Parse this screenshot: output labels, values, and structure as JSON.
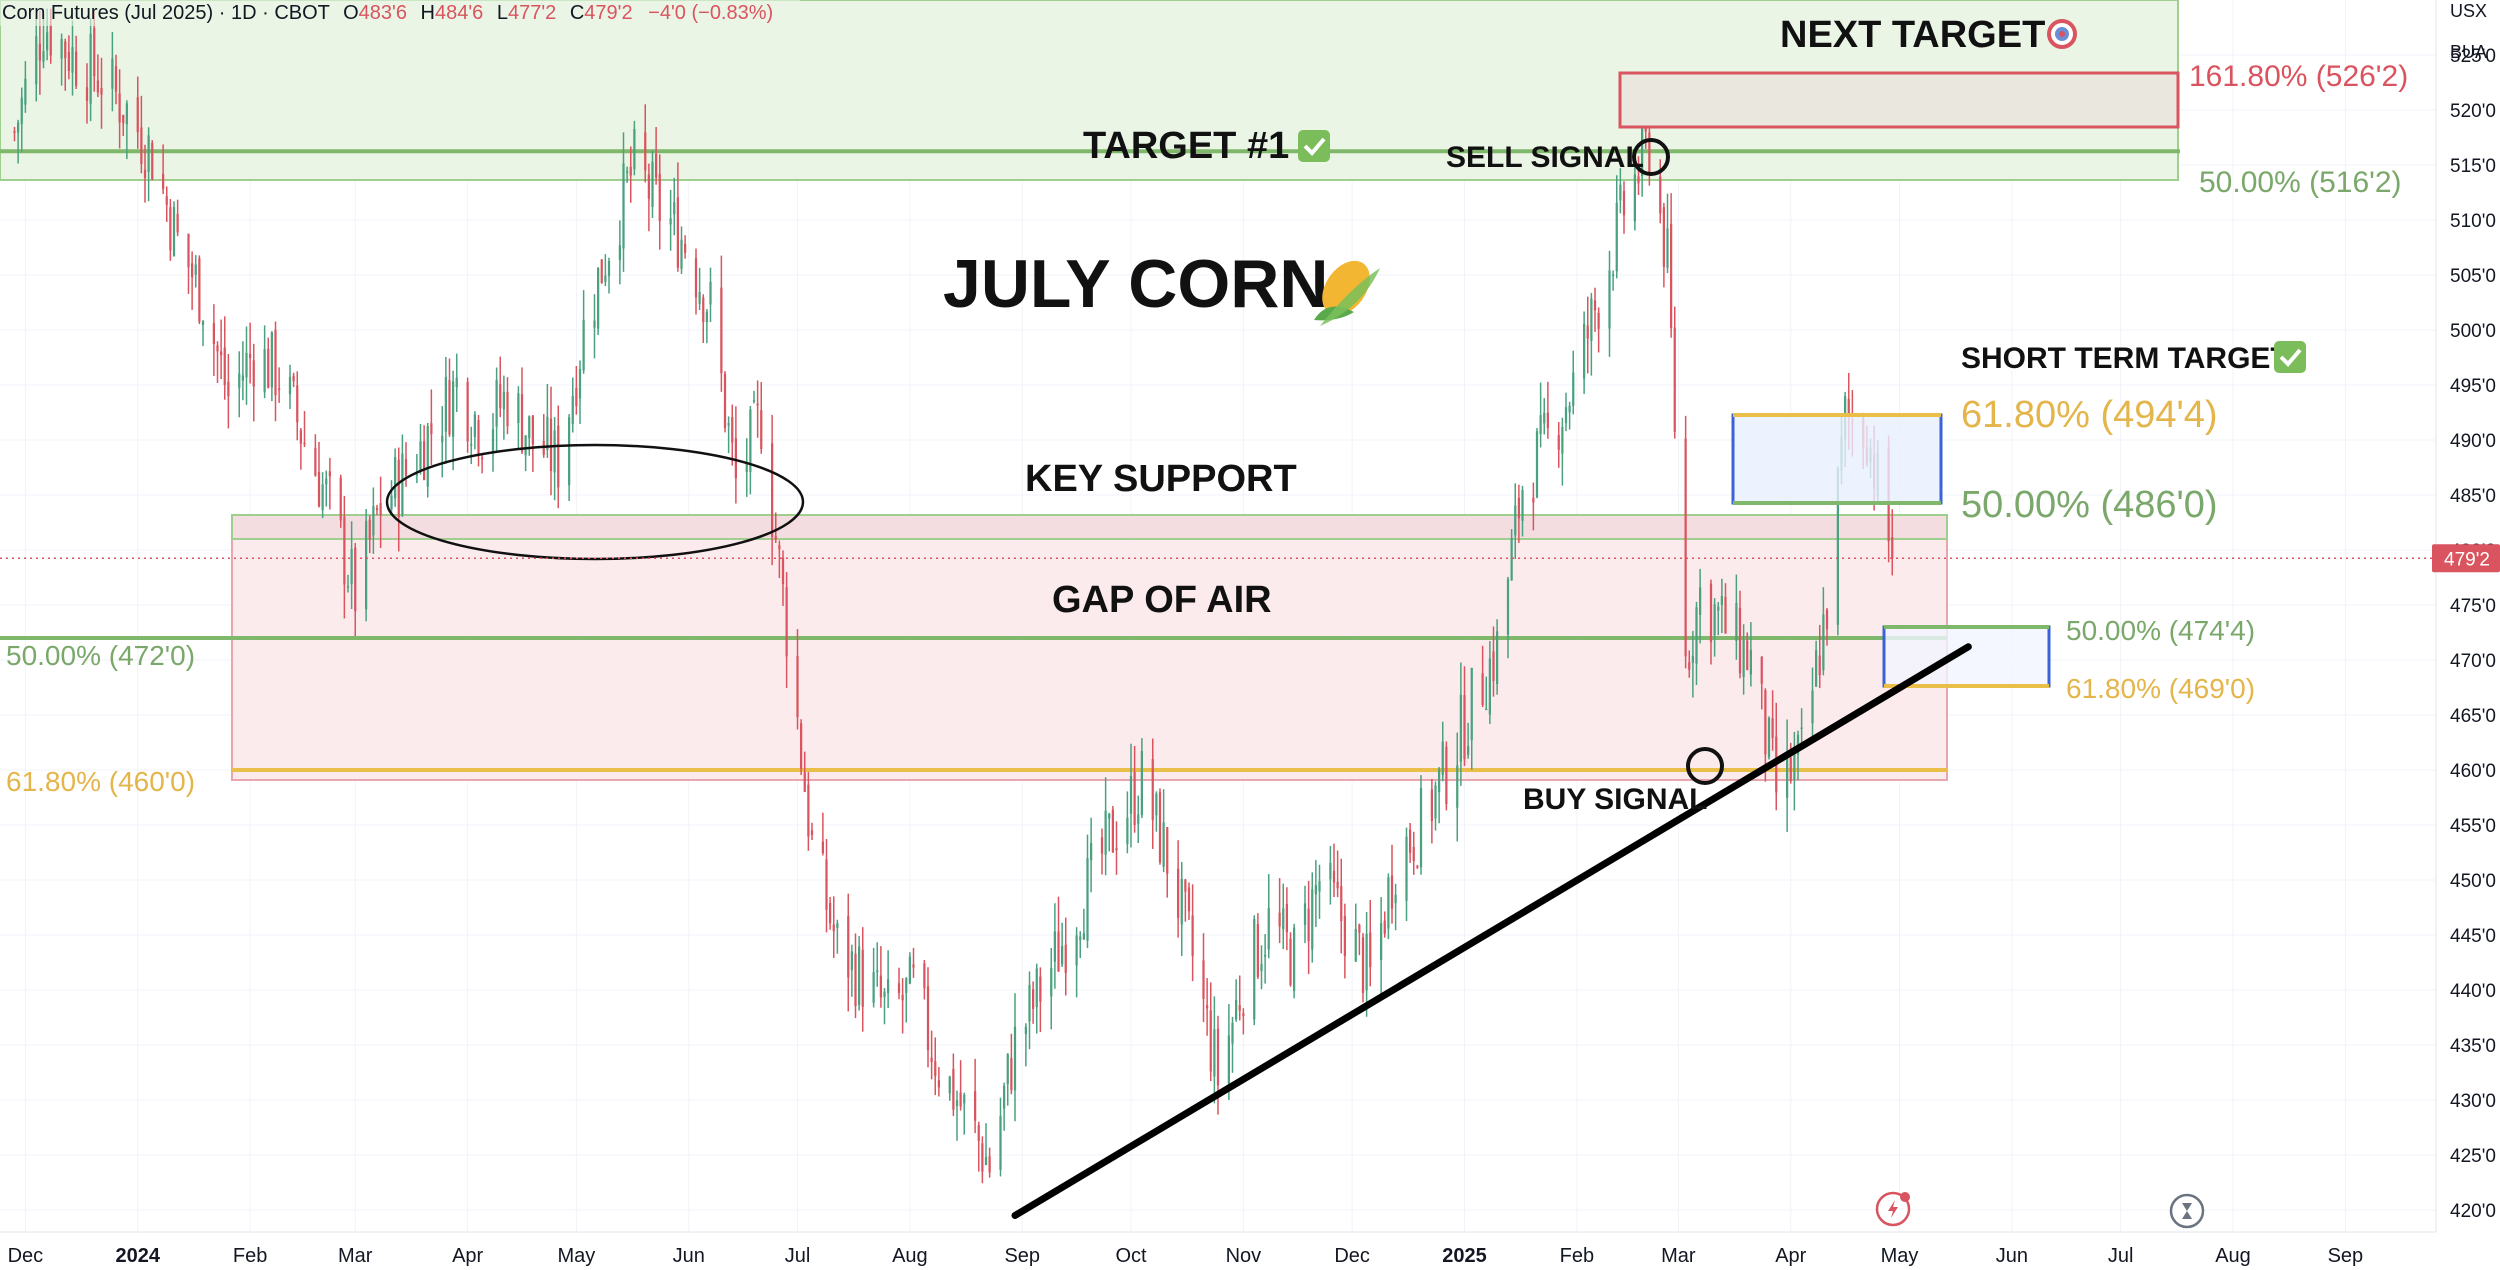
{
  "header": {
    "symbol": "Corn Futures (Jul 2025) · 1D · CBOT",
    "o_label": "O",
    "o_value": "483'6",
    "h_label": "H",
    "h_value": "484'6",
    "l_label": "L",
    "l_value": "477'2",
    "c_label": "C",
    "c_value": "479'2",
    "change": "−4'0 (−0.83%)"
  },
  "axis": {
    "currency": "USX",
    "unit": "BUA",
    "price_ticks": [
      "525'0",
      "520'0",
      "515'0",
      "510'0",
      "505'0",
      "500'0",
      "495'0",
      "490'0",
      "485'0",
      "480'0",
      "475'0",
      "470'0",
      "465'0",
      "460'0",
      "455'0",
      "450'0",
      "445'0",
      "440'0",
      "435'0",
      "430'0",
      "425'0",
      "420'0"
    ],
    "price_tick_values": [
      525,
      520,
      515,
      510,
      505,
      500,
      495,
      490,
      485,
      480,
      475,
      470,
      465,
      460,
      455,
      450,
      445,
      440,
      435,
      430,
      425,
      420
    ],
    "last_price_label": "479'2",
    "last_price": 479.25,
    "time_ticks": [
      "Dec",
      "2024",
      "Feb",
      "Mar",
      "Apr",
      "May",
      "Jun",
      "Jul",
      "Aug",
      "Sep",
      "Oct",
      "Nov",
      "Dec",
      "2025",
      "Feb",
      "Mar",
      "Apr",
      "May",
      "Jun",
      "Jul",
      "Aug",
      "Sep"
    ],
    "time_tick_dates": [
      "2023-12-01",
      "2024-01-01",
      "2024-02-01",
      "2024-03-01",
      "2024-04-01",
      "2024-05-01",
      "2024-06-01",
      "2024-07-01",
      "2024-08-01",
      "2024-09-01",
      "2024-10-01",
      "2024-11-01",
      "2024-12-01",
      "2025-01-01",
      "2025-02-01",
      "2025-03-01",
      "2025-04-01",
      "2025-05-01",
      "2025-06-01",
      "2025-07-01",
      "2025-08-01",
      "2025-09-01"
    ],
    "bold_time_ticks": [
      "2024",
      "2025"
    ]
  },
  "annotations": {
    "title": "JULY CORN",
    "title_icon": "corn-icon",
    "next_target": "NEXT TARGET",
    "next_target_icon": "target-icon",
    "target1": "TARGET #1",
    "target1_icon": "check-icon",
    "sell_signal": "SELL SIGNAL",
    "buy_signal": "BUY SIGNAL",
    "short_term_target": "SHORT TERM TARGET",
    "short_term_icon": "check-icon",
    "key_support": "KEY SUPPORT",
    "gap_of_air": "GAP OF AIR"
  },
  "fib_labels": {
    "f161_top": "161.80% (526'2)",
    "f50_top": "50.00% (516'2)",
    "f618_st": "61.80% (494'4)",
    "f50_st": "50.00% (486'0)",
    "f50_low_right": "50.00% (474'4)",
    "f618_low_right": "61.80% (469'0)",
    "f50_left": "50.00% (472'0)",
    "f618_left": "61.80% (460'0)"
  },
  "colors": {
    "up": "#4aa07f",
    "down": "#d9545e",
    "fib_green": "#7fb86a",
    "fib_yellow": "#e9bf4a",
    "fib_red": "#d9545e",
    "fib_green_text": "#7aa86a",
    "fib_yellow_text": "#e3b54a",
    "fib_red_text": "#d9545e",
    "blue_box": "#3b63d6",
    "last_price_bg": "#d9545e"
  },
  "chart_data": {
    "type": "candlestick",
    "title": "JULY CORN",
    "ylim": [
      418,
      530
    ],
    "xlim": [
      "2023-11-24",
      "2025-09-26"
    ],
    "grid": true,
    "trendline": {
      "from": [
        "2024-08-30",
        419.5
      ],
      "to": [
        "2025-05-20",
        471.2
      ]
    },
    "levels": [
      {
        "label": "161.80% (526'2)",
        "value": 526.25
      },
      {
        "label": "50.00% (516'2)",
        "value": 516.25
      },
      {
        "label": "61.80% (494'4)",
        "value": 494.5
      },
      {
        "label": "50.00% (486'0)",
        "value": 486.0
      },
      {
        "label": "50.00% (474'4)",
        "value": 474.5
      },
      {
        "label": "61.80% (469'0)",
        "value": 469.0
      },
      {
        "label": "50.00% (472'0)",
        "value": 472.0
      },
      {
        "label": "61.80% (460'0)",
        "value": 460.0
      }
    ],
    "close_path": [
      [
        "2023-11-28",
        518
      ],
      [
        "2023-12-06",
        528
      ],
      [
        "2023-12-14",
        525
      ],
      [
        "2023-12-22",
        523
      ],
      [
        "2023-12-29",
        520
      ],
      [
        "2024-01-05",
        516
      ],
      [
        "2024-01-12",
        508
      ],
      [
        "2024-01-19",
        503
      ],
      [
        "2024-01-26",
        494
      ],
      [
        "2024-02-02",
        498
      ],
      [
        "2024-02-09",
        496
      ],
      [
        "2024-02-16",
        490
      ],
      [
        "2024-02-23",
        484
      ],
      [
        "2024-03-01",
        476
      ],
      [
        "2024-03-08",
        484
      ],
      [
        "2024-03-15",
        487
      ],
      [
        "2024-03-22",
        491
      ],
      [
        "2024-03-29",
        495
      ],
      [
        "2024-04-05",
        491
      ],
      [
        "2024-04-12",
        494
      ],
      [
        "2024-04-19",
        490
      ],
      [
        "2024-04-26",
        488
      ],
      [
        "2024-05-03",
        500
      ],
      [
        "2024-05-10",
        508
      ],
      [
        "2024-05-17",
        515
      ],
      [
        "2024-05-24",
        511
      ],
      [
        "2024-05-31",
        508
      ],
      [
        "2024-06-07",
        502
      ],
      [
        "2024-06-14",
        486
      ],
      [
        "2024-06-21",
        492
      ],
      [
        "2024-06-28",
        473
      ],
      [
        "2024-07-05",
        453
      ],
      [
        "2024-07-12",
        444
      ],
      [
        "2024-07-19",
        441
      ],
      [
        "2024-07-26",
        438
      ],
      [
        "2024-08-02",
        440
      ],
      [
        "2024-08-09",
        433
      ],
      [
        "2024-08-16",
        429
      ],
      [
        "2024-08-23",
        424
      ],
      [
        "2024-08-30",
        435
      ],
      [
        "2024-09-06",
        440
      ],
      [
        "2024-09-13",
        445
      ],
      [
        "2024-09-20",
        450
      ],
      [
        "2024-09-27",
        455
      ],
      [
        "2024-10-04",
        459
      ],
      [
        "2024-10-11",
        452
      ],
      [
        "2024-10-18",
        443
      ],
      [
        "2024-10-25",
        432
      ],
      [
        "2024-11-01",
        441
      ],
      [
        "2024-11-08",
        446
      ],
      [
        "2024-11-15",
        443
      ],
      [
        "2024-11-22",
        450
      ],
      [
        "2024-11-29",
        446
      ],
      [
        "2024-12-06",
        441
      ],
      [
        "2024-12-13",
        452
      ],
      [
        "2024-12-20",
        455
      ],
      [
        "2024-12-27",
        460
      ],
      [
        "2025-01-03",
        466
      ],
      [
        "2025-01-10",
        471
      ],
      [
        "2025-01-17",
        486
      ],
      [
        "2025-01-24",
        490
      ],
      [
        "2025-01-31",
        495
      ],
      [
        "2025-02-07",
        503
      ],
      [
        "2025-02-14",
        511
      ],
      [
        "2025-02-21",
        517
      ],
      [
        "2025-02-26",
        506
      ],
      [
        "2025-03-03",
        470
      ],
      [
        "2025-03-07",
        476
      ],
      [
        "2025-03-14",
        473
      ],
      [
        "2025-03-21",
        470
      ],
      [
        "2025-03-28",
        458
      ],
      [
        "2025-04-04",
        461
      ],
      [
        "2025-04-11",
        475
      ],
      [
        "2025-04-16",
        492
      ],
      [
        "2025-04-22",
        491
      ],
      [
        "2025-04-29",
        479.25
      ]
    ]
  }
}
